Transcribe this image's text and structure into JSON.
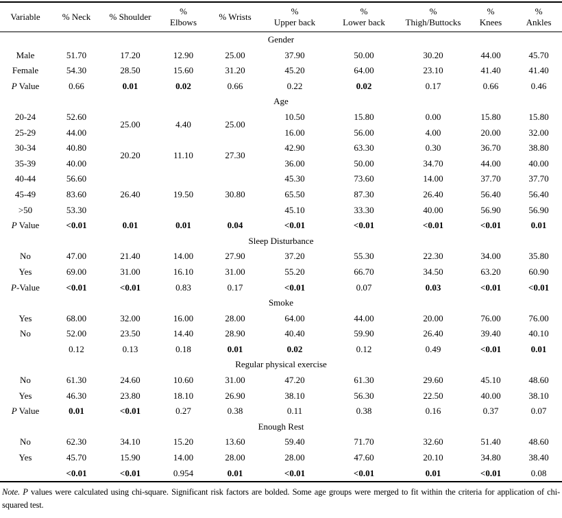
{
  "colors": {
    "text": "#000000",
    "background": "#ffffff",
    "rule": "#000000"
  },
  "table": {
    "columns": [
      "Variable",
      "% Neck",
      "% Shoulder",
      "%\nElbows",
      "% Wrists",
      "%\nUpper back",
      "%\nLower back",
      "%\nThigh/Buttocks",
      "%\nKnees",
      "%\nAnkles"
    ],
    "sections": [
      {
        "title": "Gender",
        "rows": [
          {
            "label": "Male",
            "cells": [
              "51.70",
              "17.20",
              "12.90",
              "25.00",
              "37.90",
              "50.00",
              "30.20",
              "44.00",
              "45.70"
            ]
          },
          {
            "label": "Female",
            "cells": [
              "54.30",
              "28.50",
              "15.60",
              "31.20",
              "45.20",
              "64.00",
              "23.10",
              "41.40",
              "41.40"
            ]
          },
          {
            "label": "P Value",
            "pi": true,
            "cells": [
              "0.66",
              {
                "v": "0.01",
                "b": true
              },
              {
                "v": "0.02",
                "b": true
              },
              "0.66",
              "0.22",
              {
                "v": "0.02",
                "b": true
              },
              "0.17",
              "0.66",
              "0.46"
            ]
          }
        ]
      },
      {
        "title": "Age",
        "rows": [
          {
            "label": "20-24",
            "cells": [
              "52.60",
              {
                "v": "25.00",
                "rs": 2
              },
              {
                "v": "4.40",
                "rs": 2
              },
              {
                "v": "25.00",
                "rs": 2
              },
              "10.50",
              "15.80",
              "0.00",
              "15.80",
              "15.80"
            ]
          },
          {
            "label": "25-29",
            "cells": [
              "44.00",
              null,
              null,
              null,
              "16.00",
              "56.00",
              "4.00",
              "20.00",
              "32.00"
            ]
          },
          {
            "label": "30-34",
            "cells": [
              "40.80",
              {
                "v": "20.20",
                "rs": 2
              },
              {
                "v": "11.10",
                "rs": 2
              },
              {
                "v": "27.30",
                "rs": 2
              },
              "42.90",
              "63.30",
              "0.30",
              "36.70",
              "38.80"
            ]
          },
          {
            "label": "35-39",
            "cells": [
              "40.00",
              null,
              null,
              null,
              "36.00",
              "50.00",
              "34.70",
              "44.00",
              "40.00"
            ]
          },
          {
            "label": "40-44",
            "cells": [
              "56.60",
              {
                "v": "26.40",
                "rs": 3
              },
              {
                "v": "19.50",
                "rs": 3
              },
              {
                "v": "30.80",
                "rs": 3
              },
              "45.30",
              "73.60",
              "14.00",
              "37.70",
              "37.70"
            ]
          },
          {
            "label": "45-49",
            "cells": [
              "83.60",
              null,
              null,
              null,
              "65.50",
              "87.30",
              "26.40",
              "56.40",
              "56.40"
            ]
          },
          {
            "label": ">50",
            "cells": [
              "53.30",
              null,
              null,
              null,
              "45.10",
              "33.30",
              "40.00",
              "56.90",
              "56.90"
            ]
          },
          {
            "label": "P Value",
            "pi": true,
            "cells": [
              {
                "v": "<0.01",
                "b": true
              },
              {
                "v": "0.01",
                "b": true
              },
              {
                "v": "0.01",
                "b": true
              },
              {
                "v": "0.04",
                "b": true
              },
              {
                "v": "<0.01",
                "b": true
              },
              {
                "v": "<0.01",
                "b": true
              },
              {
                "v": "<0.01",
                "b": true
              },
              {
                "v": "<0.01",
                "b": true
              },
              {
                "v": "0.01",
                "b": true
              }
            ]
          }
        ]
      },
      {
        "title": "Sleep Disturbance",
        "rows": [
          {
            "label": "No",
            "cells": [
              "47.00",
              "21.40",
              "14.00",
              "27.90",
              "37.20",
              "55.30",
              "22.30",
              "34.00",
              "35.80"
            ]
          },
          {
            "label": "Yes",
            "cells": [
              "69.00",
              "31.00",
              "16.10",
              "31.00",
              "55.20",
              "66.70",
              "34.50",
              "63.20",
              "60.90"
            ]
          },
          {
            "label": "P-Value",
            "pi": true,
            "cells": [
              {
                "v": "<0.01",
                "b": true
              },
              {
                "v": "<0.01",
                "b": true
              },
              "0.83",
              "0.17",
              {
                "v": "<0.01",
                "b": true
              },
              "0.07",
              {
                "v": "0.03",
                "b": true
              },
              {
                "v": "<0.01",
                "b": true
              },
              {
                "v": "<0.01",
                "b": true
              }
            ]
          }
        ]
      },
      {
        "title": "Smoke",
        "rows": [
          {
            "label": "Yes",
            "cells": [
              "68.00",
              "32.00",
              "16.00",
              "28.00",
              "64.00",
              "44.00",
              "20.00",
              "76.00",
              "76.00"
            ]
          },
          {
            "label": "No",
            "cells": [
              "52.00",
              "23.50",
              "14.40",
              "28.90",
              "40.40",
              "59.90",
              "26.40",
              "39.40",
              "40.10"
            ]
          },
          {
            "label": "",
            "cells": [
              "0.12",
              "0.13",
              "0.18",
              {
                "v": "0.01",
                "b": true
              },
              {
                "v": "0.02",
                "b": true
              },
              "0.12",
              "0.49",
              {
                "v": "<0.01",
                "b": true
              },
              {
                "v": "0.01",
                "b": true
              }
            ]
          }
        ]
      },
      {
        "title": "Regular physical exercise",
        "rows": [
          {
            "label": "No",
            "cells": [
              "61.30",
              "24.60",
              "10.60",
              "31.00",
              "47.20",
              "61.30",
              "29.60",
              "45.10",
              "48.60"
            ]
          },
          {
            "label": "Yes",
            "cells": [
              "46.30",
              "23.80",
              "18.10",
              "26.90",
              "38.10",
              "56.30",
              "22.50",
              "40.00",
              "38.10"
            ]
          },
          {
            "label": "P Value",
            "pi": true,
            "cells": [
              {
                "v": "0.01",
                "b": true
              },
              {
                "v": "<0.01",
                "b": true
              },
              "0.27",
              "0.38",
              "0.11",
              "0.38",
              "0.16",
              "0.37",
              "0.07"
            ]
          }
        ]
      },
      {
        "title": "Enough Rest",
        "rows": [
          {
            "label": "No",
            "cells": [
              "62.30",
              "34.10",
              "15.20",
              "13.60",
              "59.40",
              "71.70",
              "32.60",
              "51.40",
              "48.60"
            ]
          },
          {
            "label": "Yes",
            "cells": [
              "45.70",
              "15.90",
              "14.00",
              "28.00",
              "28.00",
              "47.60",
              "20.10",
              "34.80",
              "38.40"
            ]
          },
          {
            "label": "",
            "cells": [
              {
                "v": "<0.01",
                "b": true
              },
              {
                "v": "<0.01",
                "b": true
              },
              "0.954",
              {
                "v": "0.01",
                "b": true
              },
              {
                "v": "<0.01",
                "b": true
              },
              {
                "v": "<0.01",
                "b": true
              },
              {
                "v": "0.01",
                "b": true
              },
              {
                "v": "<0.01",
                "b": true
              },
              "0.08"
            ]
          }
        ]
      }
    ],
    "note": {
      "lead": "Note.",
      "p": "P",
      "rest": "values were calculated using chi-square. Significant risk factors are bolded. Some age groups were merged to fit within the criteria for application of chi-squared test."
    }
  }
}
